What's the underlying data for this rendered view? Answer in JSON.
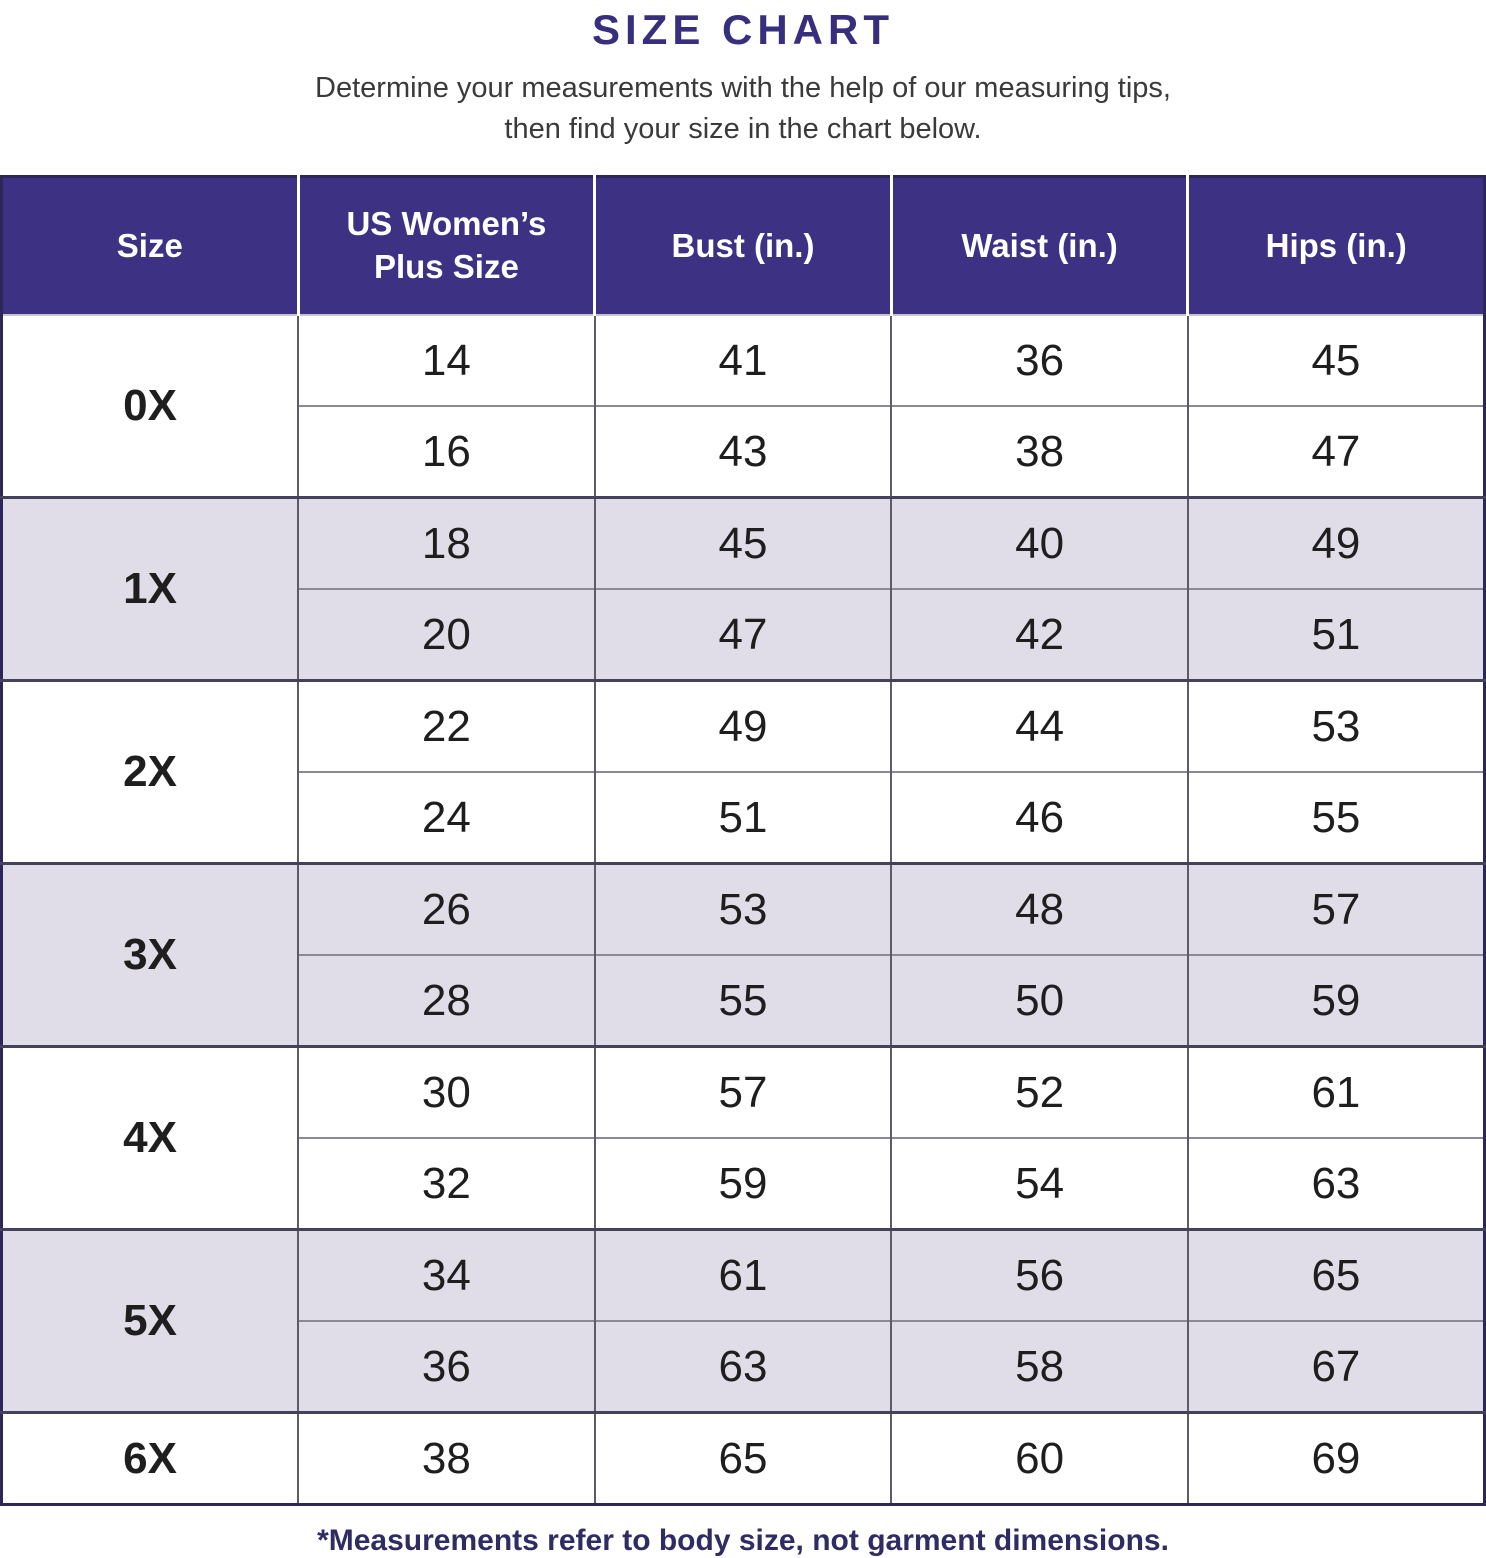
{
  "title": "SIZE CHART",
  "subtitle_line1": "Determine your measurements with the help of our measuring tips,",
  "subtitle_line2": "then find your size in the chart below.",
  "footnote": "*Measurements refer to body size, not garment dimensions.",
  "colors": {
    "header_background": "#3d3184",
    "header_text": "#ffffff",
    "alt_row_background": "#e0dce8",
    "title_text": "#372e7d",
    "size_label_text": "#3a2f80",
    "footnote_text": "#2f2c63"
  },
  "chart_data": {
    "type": "table",
    "title": "SIZE CHART",
    "columns": [
      "Size",
      "US Women’s Plus Size",
      "Bust (in.)",
      "Waist (in.)",
      "Hips (in.)"
    ],
    "groups": [
      {
        "size": "0X",
        "rows": [
          [
            "14",
            "41",
            "36",
            "45"
          ],
          [
            "16",
            "43",
            "38",
            "47"
          ]
        ]
      },
      {
        "size": "1X",
        "rows": [
          [
            "18",
            "45",
            "40",
            "49"
          ],
          [
            "20",
            "47",
            "42",
            "51"
          ]
        ]
      },
      {
        "size": "2X",
        "rows": [
          [
            "22",
            "49",
            "44",
            "53"
          ],
          [
            "24",
            "51",
            "46",
            "55"
          ]
        ]
      },
      {
        "size": "3X",
        "rows": [
          [
            "26",
            "53",
            "48",
            "57"
          ],
          [
            "28",
            "55",
            "50",
            "59"
          ]
        ]
      },
      {
        "size": "4X",
        "rows": [
          [
            "30",
            "57",
            "52",
            "61"
          ],
          [
            "32",
            "59",
            "54",
            "63"
          ]
        ]
      },
      {
        "size": "5X",
        "rows": [
          [
            "34",
            "61",
            "56",
            "65"
          ],
          [
            "36",
            "63",
            "58",
            "67"
          ]
        ]
      },
      {
        "size": "6X",
        "rows": [
          [
            "38",
            "65",
            "60",
            "69"
          ]
        ]
      }
    ]
  }
}
